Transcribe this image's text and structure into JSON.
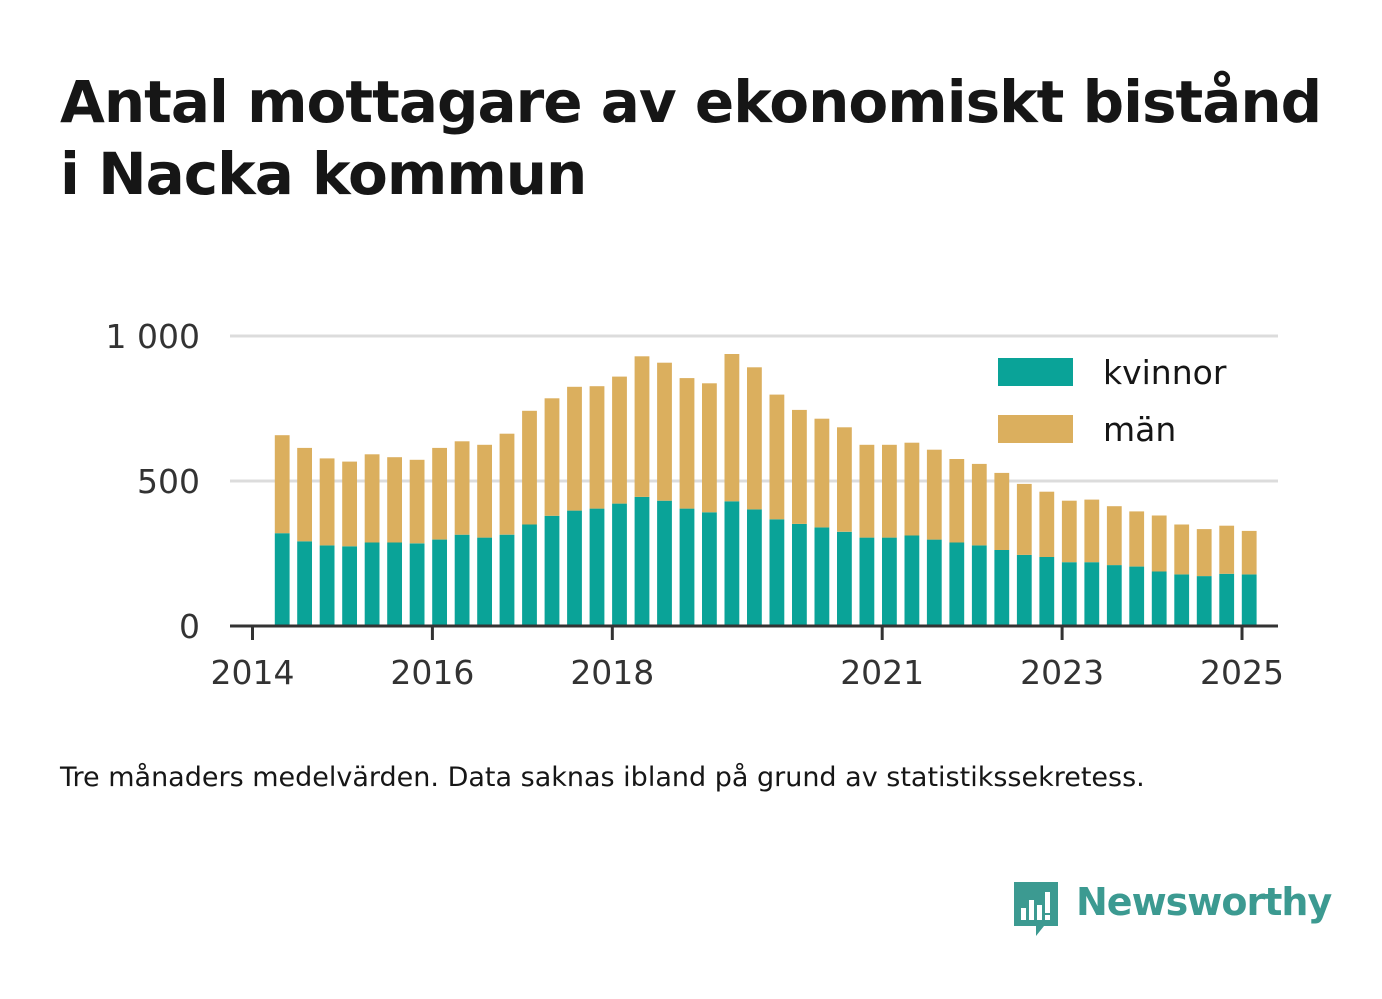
{
  "title": "Antal mottagare av ekonomiskt bistånd i Nacka kommun",
  "footnote": "Tre månaders medelvärden. Data saknas ibland på grund av statistikssekretess.",
  "brand": {
    "name": "Newsworthy",
    "icon": "newsworthy-logo-icon",
    "color": "#3c9a91"
  },
  "chart_data": {
    "type": "bar",
    "stacked": true,
    "xlim": [
      2013.75,
      2025.4
    ],
    "ylim": [
      0,
      1000
    ],
    "x_ticks": [
      2014,
      2016,
      2018,
      2021,
      2023,
      2025
    ],
    "y_ticks": [
      0,
      500,
      1000
    ],
    "y_tick_labels": [
      "0",
      "500",
      "1 000"
    ],
    "grid": true,
    "legend_position": "top-right",
    "x": [
      2014.33,
      2014.58,
      2014.83,
      2015.08,
      2015.33,
      2015.58,
      2015.83,
      2016.08,
      2016.33,
      2016.58,
      2016.83,
      2017.08,
      2017.33,
      2017.58,
      2017.83,
      2018.08,
      2018.33,
      2018.58,
      2018.83,
      2019.08,
      2019.33,
      2019.58,
      2019.83,
      2020.08,
      2020.33,
      2020.58,
      2020.83,
      2021.08,
      2021.33,
      2021.58,
      2021.83,
      2022.08,
      2022.33,
      2022.58,
      2022.83,
      2023.08,
      2023.33,
      2023.58,
      2023.83,
      2024.08,
      2024.33,
      2024.58,
      2024.83,
      2025.08
    ],
    "colors": {
      "kvinnor": "#0aa398",
      "män": "#dbaf5e"
    },
    "series": [
      {
        "name": "kvinnor",
        "values": [
          320,
          292,
          278,
          275,
          288,
          288,
          285,
          298,
          315,
          305,
          315,
          350,
          380,
          398,
          405,
          422,
          445,
          432,
          405,
          392,
          430,
          402,
          368,
          352,
          340,
          325,
          305,
          305,
          312,
          298,
          288,
          278,
          262,
          245,
          238,
          220,
          220,
          210,
          205,
          188,
          178,
          172,
          180,
          178
        ]
      },
      {
        "name": "män",
        "values": [
          338,
          322,
          300,
          292,
          304,
          294,
          288,
          316,
          322,
          320,
          348,
          392,
          405,
          427,
          422,
          438,
          485,
          476,
          450,
          445,
          508,
          490,
          430,
          393,
          375,
          360,
          320,
          320,
          320,
          310,
          288,
          281,
          266,
          245,
          225,
          212,
          216,
          203,
          190,
          193,
          172,
          162,
          166,
          150
        ]
      }
    ]
  }
}
